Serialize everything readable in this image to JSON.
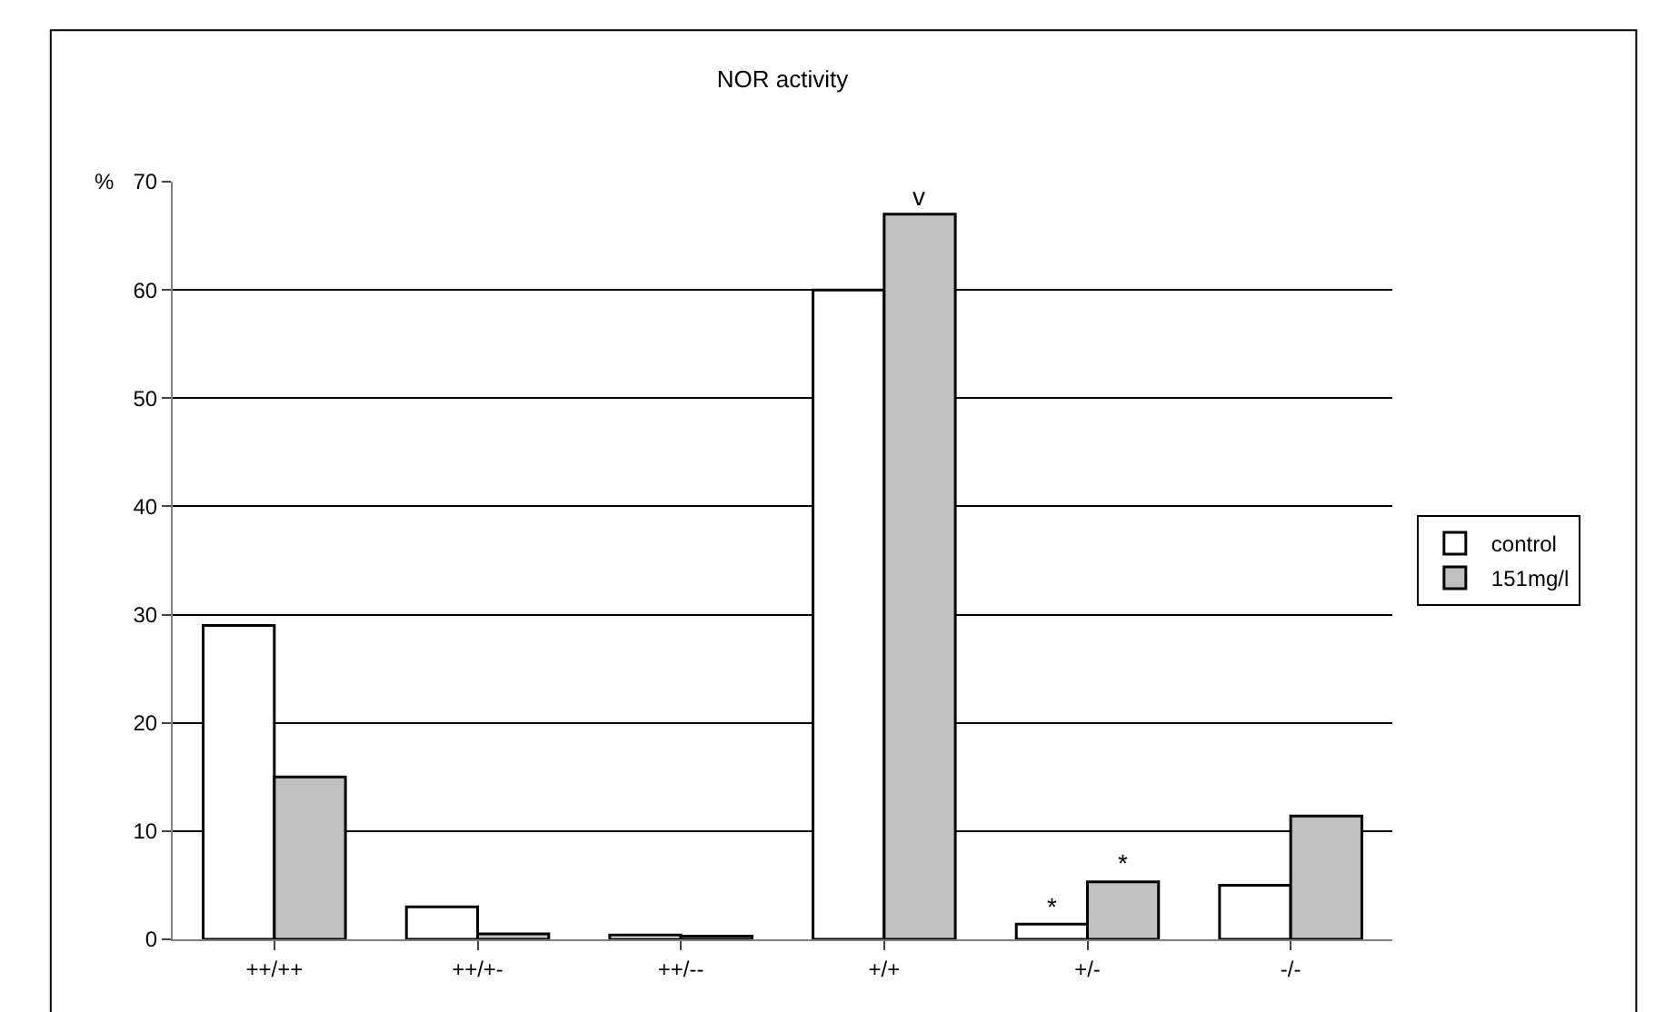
{
  "chart_data": {
    "type": "bar",
    "title": "NOR activity",
    "ylabel": "%",
    "categories": [
      "++/++",
      "++/+-",
      "++/--",
      "+/+",
      "+/-",
      "-/-"
    ],
    "series": [
      {
        "name": "control",
        "color": "#ffffff",
        "values": [
          29,
          3,
          0.4,
          60,
          1.4,
          5
        ]
      },
      {
        "name": "151mg/l",
        "color": "#c0c0c0",
        "values": [
          15,
          0.5,
          0.3,
          67,
          5.3,
          11.4
        ]
      }
    ],
    "annotations": [
      {
        "text": "v",
        "x": "+/+",
        "y": 67
      },
      {
        "text": "*",
        "x": "+/-",
        "y": 1.4
      },
      {
        "text": "*",
        "x": "+/-",
        "y": 5.3
      }
    ],
    "ylim": [
      0,
      70
    ],
    "yticks": [
      0,
      10,
      20,
      30,
      40,
      50,
      60,
      70
    ],
    "grid": "y",
    "legend": "right"
  }
}
